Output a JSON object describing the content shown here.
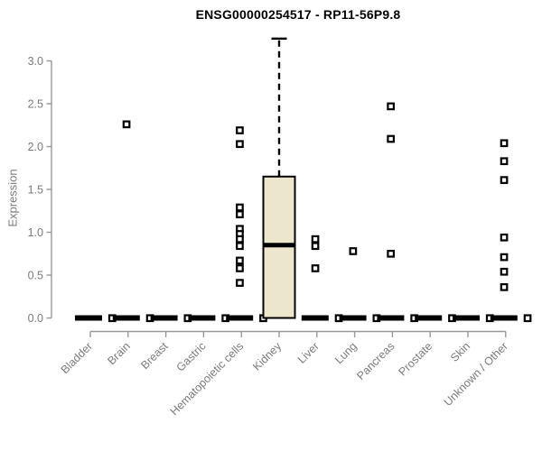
{
  "chart_data": {
    "type": "box",
    "title": "ENSG00000254517 - RP11-56P9.8",
    "ylabel": "Expression",
    "xlabel": "",
    "ylim": [
      0,
      3.3
    ],
    "yticks": [
      "0.0",
      "0.5",
      "1.0",
      "1.5",
      "2.0",
      "2.5",
      "3.0"
    ],
    "grid": false,
    "legend": "none",
    "categories": [
      "Bladder",
      "Brain",
      "Breast",
      "Gastric",
      "Hematopoietic cells",
      "Kidney",
      "Liver",
      "Lung",
      "Pancreas",
      "Prostate",
      "Skin",
      "Unknown / Other"
    ],
    "boxes": [
      {
        "category": "Bladder",
        "q1": 0,
        "median": 0,
        "q3": 0,
        "whisker_low": 0,
        "whisker_high": 0,
        "zero_marker": true,
        "outliers": []
      },
      {
        "category": "Brain",
        "q1": 0,
        "median": 0,
        "q3": 0,
        "whisker_low": 0,
        "whisker_high": 0,
        "zero_marker": true,
        "outliers": [
          2.26
        ]
      },
      {
        "category": "Breast",
        "q1": 0,
        "median": 0,
        "q3": 0,
        "whisker_low": 0,
        "whisker_high": 0,
        "zero_marker": true,
        "outliers": []
      },
      {
        "category": "Gastric",
        "q1": 0,
        "median": 0,
        "q3": 0,
        "whisker_low": 0,
        "whisker_high": 0,
        "zero_marker": true,
        "outliers": []
      },
      {
        "category": "Hematopoietic cells",
        "q1": 0,
        "median": 0,
        "q3": 0,
        "whisker_low": 0,
        "whisker_high": 0,
        "zero_marker": true,
        "outliers": [
          2.19,
          2.03,
          1.29,
          1.21,
          1.04,
          0.98,
          0.92,
          0.84,
          0.67,
          0.58,
          0.41
        ]
      },
      {
        "category": "Kidney",
        "q1": 0,
        "median": 0.85,
        "q3": 1.65,
        "whisker_low": 0,
        "whisker_high": 3.26,
        "zero_marker": false,
        "outliers": []
      },
      {
        "category": "Liver",
        "q1": 0,
        "median": 0,
        "q3": 0,
        "whisker_low": 0,
        "whisker_high": 0,
        "zero_marker": true,
        "outliers": [
          0.92,
          0.84,
          0.58
        ]
      },
      {
        "category": "Lung",
        "q1": 0,
        "median": 0,
        "q3": 0,
        "whisker_low": 0,
        "whisker_high": 0,
        "zero_marker": true,
        "outliers": [
          0.78
        ]
      },
      {
        "category": "Pancreas",
        "q1": 0,
        "median": 0,
        "q3": 0,
        "whisker_low": 0,
        "whisker_high": 0,
        "zero_marker": true,
        "outliers": [
          2.47,
          2.09,
          0.75
        ]
      },
      {
        "category": "Prostate",
        "q1": 0,
        "median": 0,
        "q3": 0,
        "whisker_low": 0,
        "whisker_high": 0,
        "zero_marker": true,
        "outliers": []
      },
      {
        "category": "Skin",
        "q1": 0,
        "median": 0,
        "q3": 0,
        "whisker_low": 0,
        "whisker_high": 0,
        "zero_marker": true,
        "outliers": []
      },
      {
        "category": "Unknown / Other",
        "q1": 0,
        "median": 0,
        "q3": 0,
        "whisker_low": 0,
        "whisker_high": 0,
        "zero_marker": true,
        "outliers": [
          2.04,
          1.83,
          1.61,
          0.94,
          0.71,
          0.54,
          0.36
        ]
      }
    ],
    "colors": {
      "box_fill": "#ECE6CC",
      "box_stroke": "#000000",
      "median": "#000000",
      "outlier_stroke": "#000000",
      "axis_line": "#989898",
      "tick_label": "#7a7a7a",
      "title_color": "#000000"
    }
  }
}
